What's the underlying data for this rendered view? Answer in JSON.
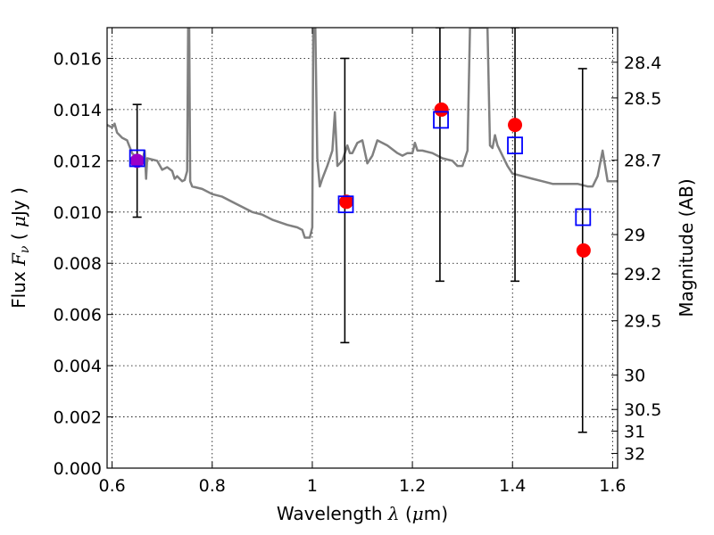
{
  "chart_data": {
    "type": "scatter",
    "xlabel": {
      "prefix": "Wavelength  ",
      "symbol": "λ",
      "suffix": " (",
      "unit_sym": "μ",
      "unit": "m)"
    },
    "ylabel": {
      "prefix": "Flux  ",
      "symbol": "F",
      "sub": "ν",
      "suffix": "  ( ",
      "unit_sym": "μ",
      "unit": "Jy )"
    },
    "y2label": "Magnitude (AB)",
    "xlim": [
      0.59,
      1.61
    ],
    "ylim": [
      0.0,
      0.0172
    ],
    "grid": true,
    "x_ticks": [
      {
        "v": 0.6,
        "label": "0.6"
      },
      {
        "v": 0.8,
        "label": "0.8"
      },
      {
        "v": 1.0,
        "label": "1"
      },
      {
        "v": 1.2,
        "label": "1.2"
      },
      {
        "v": 1.4,
        "label": "1.4"
      },
      {
        "v": 1.6,
        "label": "1.6"
      }
    ],
    "y_ticks": [
      {
        "v": 0.0,
        "label": "0.000"
      },
      {
        "v": 0.002,
        "label": "0.002"
      },
      {
        "v": 0.004,
        "label": "0.004"
      },
      {
        "v": 0.006,
        "label": "0.006"
      },
      {
        "v": 0.008,
        "label": "0.008"
      },
      {
        "v": 0.01,
        "label": "0.010"
      },
      {
        "v": 0.012,
        "label": "0.012"
      },
      {
        "v": 0.014,
        "label": "0.014"
      },
      {
        "v": 0.016,
        "label": "0.016"
      }
    ],
    "mag_ticks": [
      {
        "mag": 28.4,
        "label": "28.4"
      },
      {
        "mag": 28.5,
        "label": "28.5"
      },
      {
        "mag": 28.7,
        "label": "28.7"
      },
      {
        "mag": 29.0,
        "label": "29"
      },
      {
        "mag": 29.2,
        "label": "29.2"
      },
      {
        "mag": 29.5,
        "label": "29.5"
      },
      {
        "mag": 30.0,
        "label": "30"
      },
      {
        "mag": 30.5,
        "label": "30.5"
      },
      {
        "mag": 31.0,
        "label": "31"
      },
      {
        "mag": 32.0,
        "label": "32"
      }
    ],
    "model_spectrum": {
      "color": "#808080",
      "points": [
        [
          0.59,
          0.0134
        ],
        [
          0.6,
          0.0133
        ],
        [
          0.605,
          0.01345
        ],
        [
          0.61,
          0.0131
        ],
        [
          0.62,
          0.0129
        ],
        [
          0.63,
          0.0128
        ],
        [
          0.64,
          0.0123
        ],
        [
          0.65,
          0.0121
        ],
        [
          0.655,
          0.0119
        ],
        [
          0.66,
          0.01195
        ],
        [
          0.665,
          0.0124
        ],
        [
          0.668,
          0.0113
        ],
        [
          0.67,
          0.0121
        ],
        [
          0.69,
          0.012
        ],
        [
          0.7,
          0.01165
        ],
        [
          0.71,
          0.01175
        ],
        [
          0.72,
          0.0116
        ],
        [
          0.725,
          0.0113
        ],
        [
          0.73,
          0.0114
        ],
        [
          0.74,
          0.0112
        ],
        [
          0.745,
          0.01125
        ],
        [
          0.75,
          0.0116
        ],
        [
          0.752,
          0.0172
        ],
        [
          0.754,
          0.0172
        ],
        [
          0.756,
          0.0112
        ],
        [
          0.76,
          0.011
        ],
        [
          0.78,
          0.0109
        ],
        [
          0.8,
          0.0107
        ],
        [
          0.82,
          0.0106
        ],
        [
          0.85,
          0.0103
        ],
        [
          0.88,
          0.01
        ],
        [
          0.9,
          0.0099
        ],
        [
          0.92,
          0.0097
        ],
        [
          0.95,
          0.0095
        ],
        [
          0.97,
          0.0094
        ],
        [
          0.98,
          0.0093
        ],
        [
          0.985,
          0.009
        ],
        [
          0.995,
          0.009
        ],
        [
          1.0,
          0.0094
        ],
        [
          1.002,
          0.0172
        ],
        [
          1.006,
          0.0172
        ],
        [
          1.01,
          0.0121
        ],
        [
          1.015,
          0.011
        ],
        [
          1.02,
          0.0113
        ],
        [
          1.03,
          0.0118
        ],
        [
          1.04,
          0.0124
        ],
        [
          1.045,
          0.0139
        ],
        [
          1.05,
          0.0118
        ],
        [
          1.06,
          0.012
        ],
        [
          1.07,
          0.0126
        ],
        [
          1.075,
          0.0123
        ],
        [
          1.08,
          0.0123
        ],
        [
          1.09,
          0.0127
        ],
        [
          1.1,
          0.0128
        ],
        [
          1.11,
          0.0119
        ],
        [
          1.12,
          0.0122
        ],
        [
          1.13,
          0.0128
        ],
        [
          1.15,
          0.0126
        ],
        [
          1.17,
          0.0123
        ],
        [
          1.18,
          0.0122
        ],
        [
          1.19,
          0.0123
        ],
        [
          1.2,
          0.0123
        ],
        [
          1.205,
          0.0127
        ],
        [
          1.21,
          0.0124
        ],
        [
          1.22,
          0.0124
        ],
        [
          1.24,
          0.0123
        ],
        [
          1.26,
          0.0121
        ],
        [
          1.28,
          0.012
        ],
        [
          1.29,
          0.0118
        ],
        [
          1.3,
          0.0118
        ],
        [
          1.31,
          0.0124
        ],
        [
          1.315,
          0.0172
        ],
        [
          1.35,
          0.0172
        ],
        [
          1.355,
          0.0126
        ],
        [
          1.36,
          0.0125
        ],
        [
          1.365,
          0.013
        ],
        [
          1.37,
          0.0126
        ],
        [
          1.38,
          0.0122
        ],
        [
          1.39,
          0.0118
        ],
        [
          1.4,
          0.0115
        ],
        [
          1.42,
          0.0114
        ],
        [
          1.44,
          0.0113
        ],
        [
          1.46,
          0.0112
        ],
        [
          1.48,
          0.0111
        ],
        [
          1.5,
          0.0111
        ],
        [
          1.53,
          0.0111
        ],
        [
          1.55,
          0.011
        ],
        [
          1.56,
          0.011
        ],
        [
          1.57,
          0.0114
        ],
        [
          1.58,
          0.0124
        ],
        [
          1.59,
          0.0112
        ],
        [
          1.61,
          0.0112
        ]
      ]
    },
    "observed": {
      "color": "#000000",
      "points": [
        {
          "x": 0.65,
          "y": 0.012,
          "ylow": 0.0098,
          "yhigh": 0.0142
        },
        {
          "x": 1.065,
          "y": 0.0103,
          "ylow": 0.0049,
          "yhigh": 0.016
        },
        {
          "x": 1.255,
          "y": 0.0136,
          "ylow": 0.0073,
          "yhigh": 0.0172
        },
        {
          "x": 1.405,
          "y": 0.0125,
          "ylow": 0.0073,
          "yhigh": 0.0172
        },
        {
          "x": 1.54,
          "y": 0.0085,
          "ylow": 0.0014,
          "yhigh": 0.0156
        }
      ]
    },
    "model_photometry": {
      "color": "#ff0000",
      "points": [
        {
          "x": 0.65,
          "y": 0.012
        },
        {
          "x": 1.068,
          "y": 0.0104
        },
        {
          "x": 1.258,
          "y": 0.014
        },
        {
          "x": 1.405,
          "y": 0.0134
        },
        {
          "x": 1.542,
          "y": 0.0085
        }
      ]
    },
    "open_squares": {
      "color": "#0000ff",
      "points": [
        {
          "x": 0.65,
          "y": 0.0121
        },
        {
          "x": 1.067,
          "y": 0.0103
        },
        {
          "x": 1.257,
          "y": 0.0136
        },
        {
          "x": 1.405,
          "y": 0.0126
        },
        {
          "x": 1.541,
          "y": 0.0098
        }
      ]
    },
    "overlap_marker_color": "#9a00c8"
  }
}
